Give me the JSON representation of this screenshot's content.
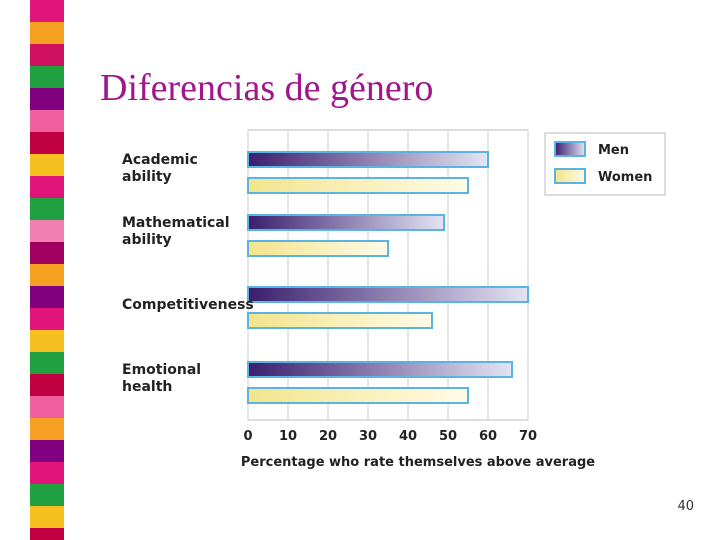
{
  "title": "Diferencias de género",
  "page_number": "40",
  "chart_data": {
    "type": "barh",
    "categories": [
      "Academic\nability",
      "Mathematical\nability",
      "Competitiveness",
      "Emotional\nhealth"
    ],
    "series": [
      {
        "name": "Men",
        "color": "#3a1e6e",
        "values": [
          60,
          49,
          70,
          66
        ]
      },
      {
        "name": "Women",
        "color": "#f3e48c",
        "values": [
          55,
          35,
          46,
          55
        ]
      }
    ],
    "x_label": "Percentage who rate themselves above average",
    "xlim": [
      0,
      70
    ],
    "xticks": [
      0,
      10,
      20,
      30,
      40,
      50,
      60,
      70
    ],
    "grid": true,
    "legend": "right"
  }
}
